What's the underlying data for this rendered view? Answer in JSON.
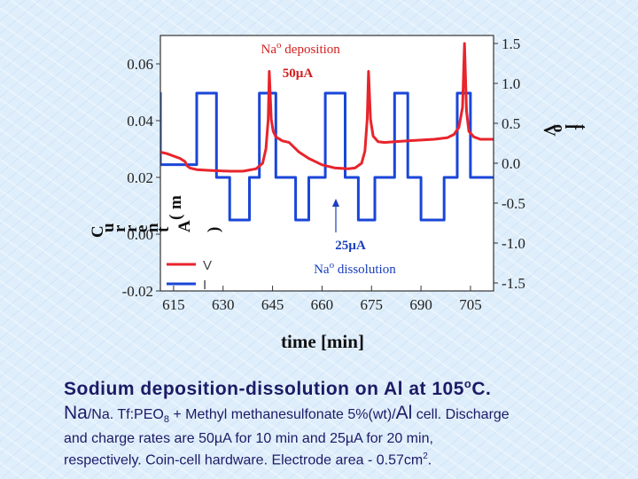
{
  "chart_data": {
    "type": "line",
    "xlabel": "time [min]",
    "y_left_label_fragments": [
      "C",
      "u",
      "r",
      "r",
      "e",
      "n",
      "t",
      "(",
      "m",
      "A",
      ")"
    ],
    "y_right_label_fragments": [
      "V",
      "o",
      "l",
      "t"
    ],
    "xlim": [
      611,
      712
    ],
    "ylim_left": [
      -0.02,
      0.07
    ],
    "ylim_right": [
      -1.6,
      1.6
    ],
    "x_ticks": [
      615,
      630,
      645,
      660,
      675,
      690,
      705
    ],
    "x_tick_labels": [
      "615",
      "630",
      "645",
      "660",
      "675",
      "690",
      "705"
    ],
    "y_left_ticks": [
      -0.02,
      0.0,
      0.02,
      0.04,
      0.06
    ],
    "y_left_tick_labels": [
      "-0.02",
      "0.00",
      "0.02",
      "0.04",
      "0.06"
    ],
    "y_right_ticks": [
      -1.5,
      -1.0,
      -0.5,
      0.0,
      0.5,
      1.0,
      1.5
    ],
    "y_right_tick_labels": [
      "-1.5",
      "-1.0",
      "-0.5",
      "0.0",
      "0.5",
      "1.0",
      "1.5"
    ],
    "legend": {
      "placement": "bottom-left",
      "entries": [
        "V",
        "I"
      ]
    },
    "series": [
      {
        "name": "V",
        "axis": "right",
        "color": "#e8242c",
        "x": [
          611,
          613,
          617,
          618.5,
          619,
          620,
          622,
          626,
          632,
          636,
          640,
          642,
          643,
          643.7,
          644,
          644.6,
          645.2,
          646,
          648,
          650,
          653,
          656,
          660,
          664,
          668,
          670,
          672,
          673,
          673.7,
          674.1,
          674.7,
          675.5,
          677,
          679,
          682,
          686,
          690,
          694,
          698,
          700,
          701.5,
          702.6,
          703.2,
          703.8,
          704.5,
          706,
          708,
          712
        ],
        "y": [
          0.14,
          0.12,
          0.06,
          0.02,
          -0.03,
          -0.06,
          -0.08,
          -0.09,
          -0.1,
          -0.1,
          -0.07,
          0.0,
          0.18,
          0.55,
          1.15,
          0.55,
          0.4,
          0.33,
          0.28,
          0.26,
          0.14,
          0.06,
          -0.02,
          -0.06,
          -0.07,
          -0.06,
          0.0,
          0.15,
          0.55,
          1.15,
          0.55,
          0.34,
          0.27,
          0.26,
          0.27,
          0.28,
          0.29,
          0.3,
          0.32,
          0.36,
          0.45,
          0.7,
          1.5,
          0.65,
          0.4,
          0.33,
          0.3,
          0.3
        ]
      },
      {
        "name": "I",
        "axis": "left",
        "color": "#1a46d8",
        "x": [
          611,
          611,
          622,
          622,
          628,
          628,
          632,
          632,
          638,
          638,
          641,
          641,
          646,
          646,
          652,
          652,
          656,
          656,
          661,
          661,
          667,
          667,
          671,
          671,
          676,
          676,
          682,
          682,
          686,
          686,
          690,
          690,
          697,
          697,
          701,
          701,
          705,
          705,
          712
        ],
        "y": [
          0.05,
          0.0245,
          0.0245,
          0.0497,
          0.0497,
          0.02,
          0.02,
          0.005,
          0.005,
          0.02,
          0.02,
          0.0497,
          0.0497,
          0.02,
          0.02,
          0.005,
          0.005,
          0.02,
          0.02,
          0.0497,
          0.0497,
          0.02,
          0.02,
          0.005,
          0.005,
          0.02,
          0.02,
          0.0497,
          0.0497,
          0.02,
          0.02,
          0.005,
          0.005,
          0.02,
          0.02,
          0.0497,
          0.0497,
          0.02,
          0.02
        ]
      }
    ],
    "annotations": [
      {
        "text_parts": [
          "Na",
          "o",
          " deposition"
        ],
        "x": 641.5,
        "y_right": 1.38,
        "color": "#d42020"
      },
      {
        "text": "50µA",
        "x": 648,
        "y_right": 1.08,
        "color": "#d42020",
        "bold": true
      },
      {
        "text": "25µA",
        "x": 664,
        "y_right": -1.08,
        "color": "#1a3fbf",
        "bold": true
      },
      {
        "text_parts": [
          "Na",
          "o",
          " dissolution"
        ],
        "x": 657.5,
        "y_right": -1.38,
        "color": "#1a3fbf"
      }
    ]
  },
  "caption": {
    "title_main": "Sodium deposition-dissolution on Al at 105",
    "title_sup": "o",
    "title_end": "C.",
    "line2_na": "Na",
    "line2_a": "/Na. Tf:PEO",
    "line2_sub": "8",
    "line2_b": " + Methyl methanesulfonate 5%(wt)/",
    "line2_al": "Al",
    "line2_c": " cell. Discharge",
    "line3": "and charge rates are 50µA for 10 min and 25µA for 20 min,",
    "line4_a": "respectively. Coin-cell hardware. Electrode area - 0.57cm",
    "line4_sup": "2",
    "line4_b": "."
  }
}
